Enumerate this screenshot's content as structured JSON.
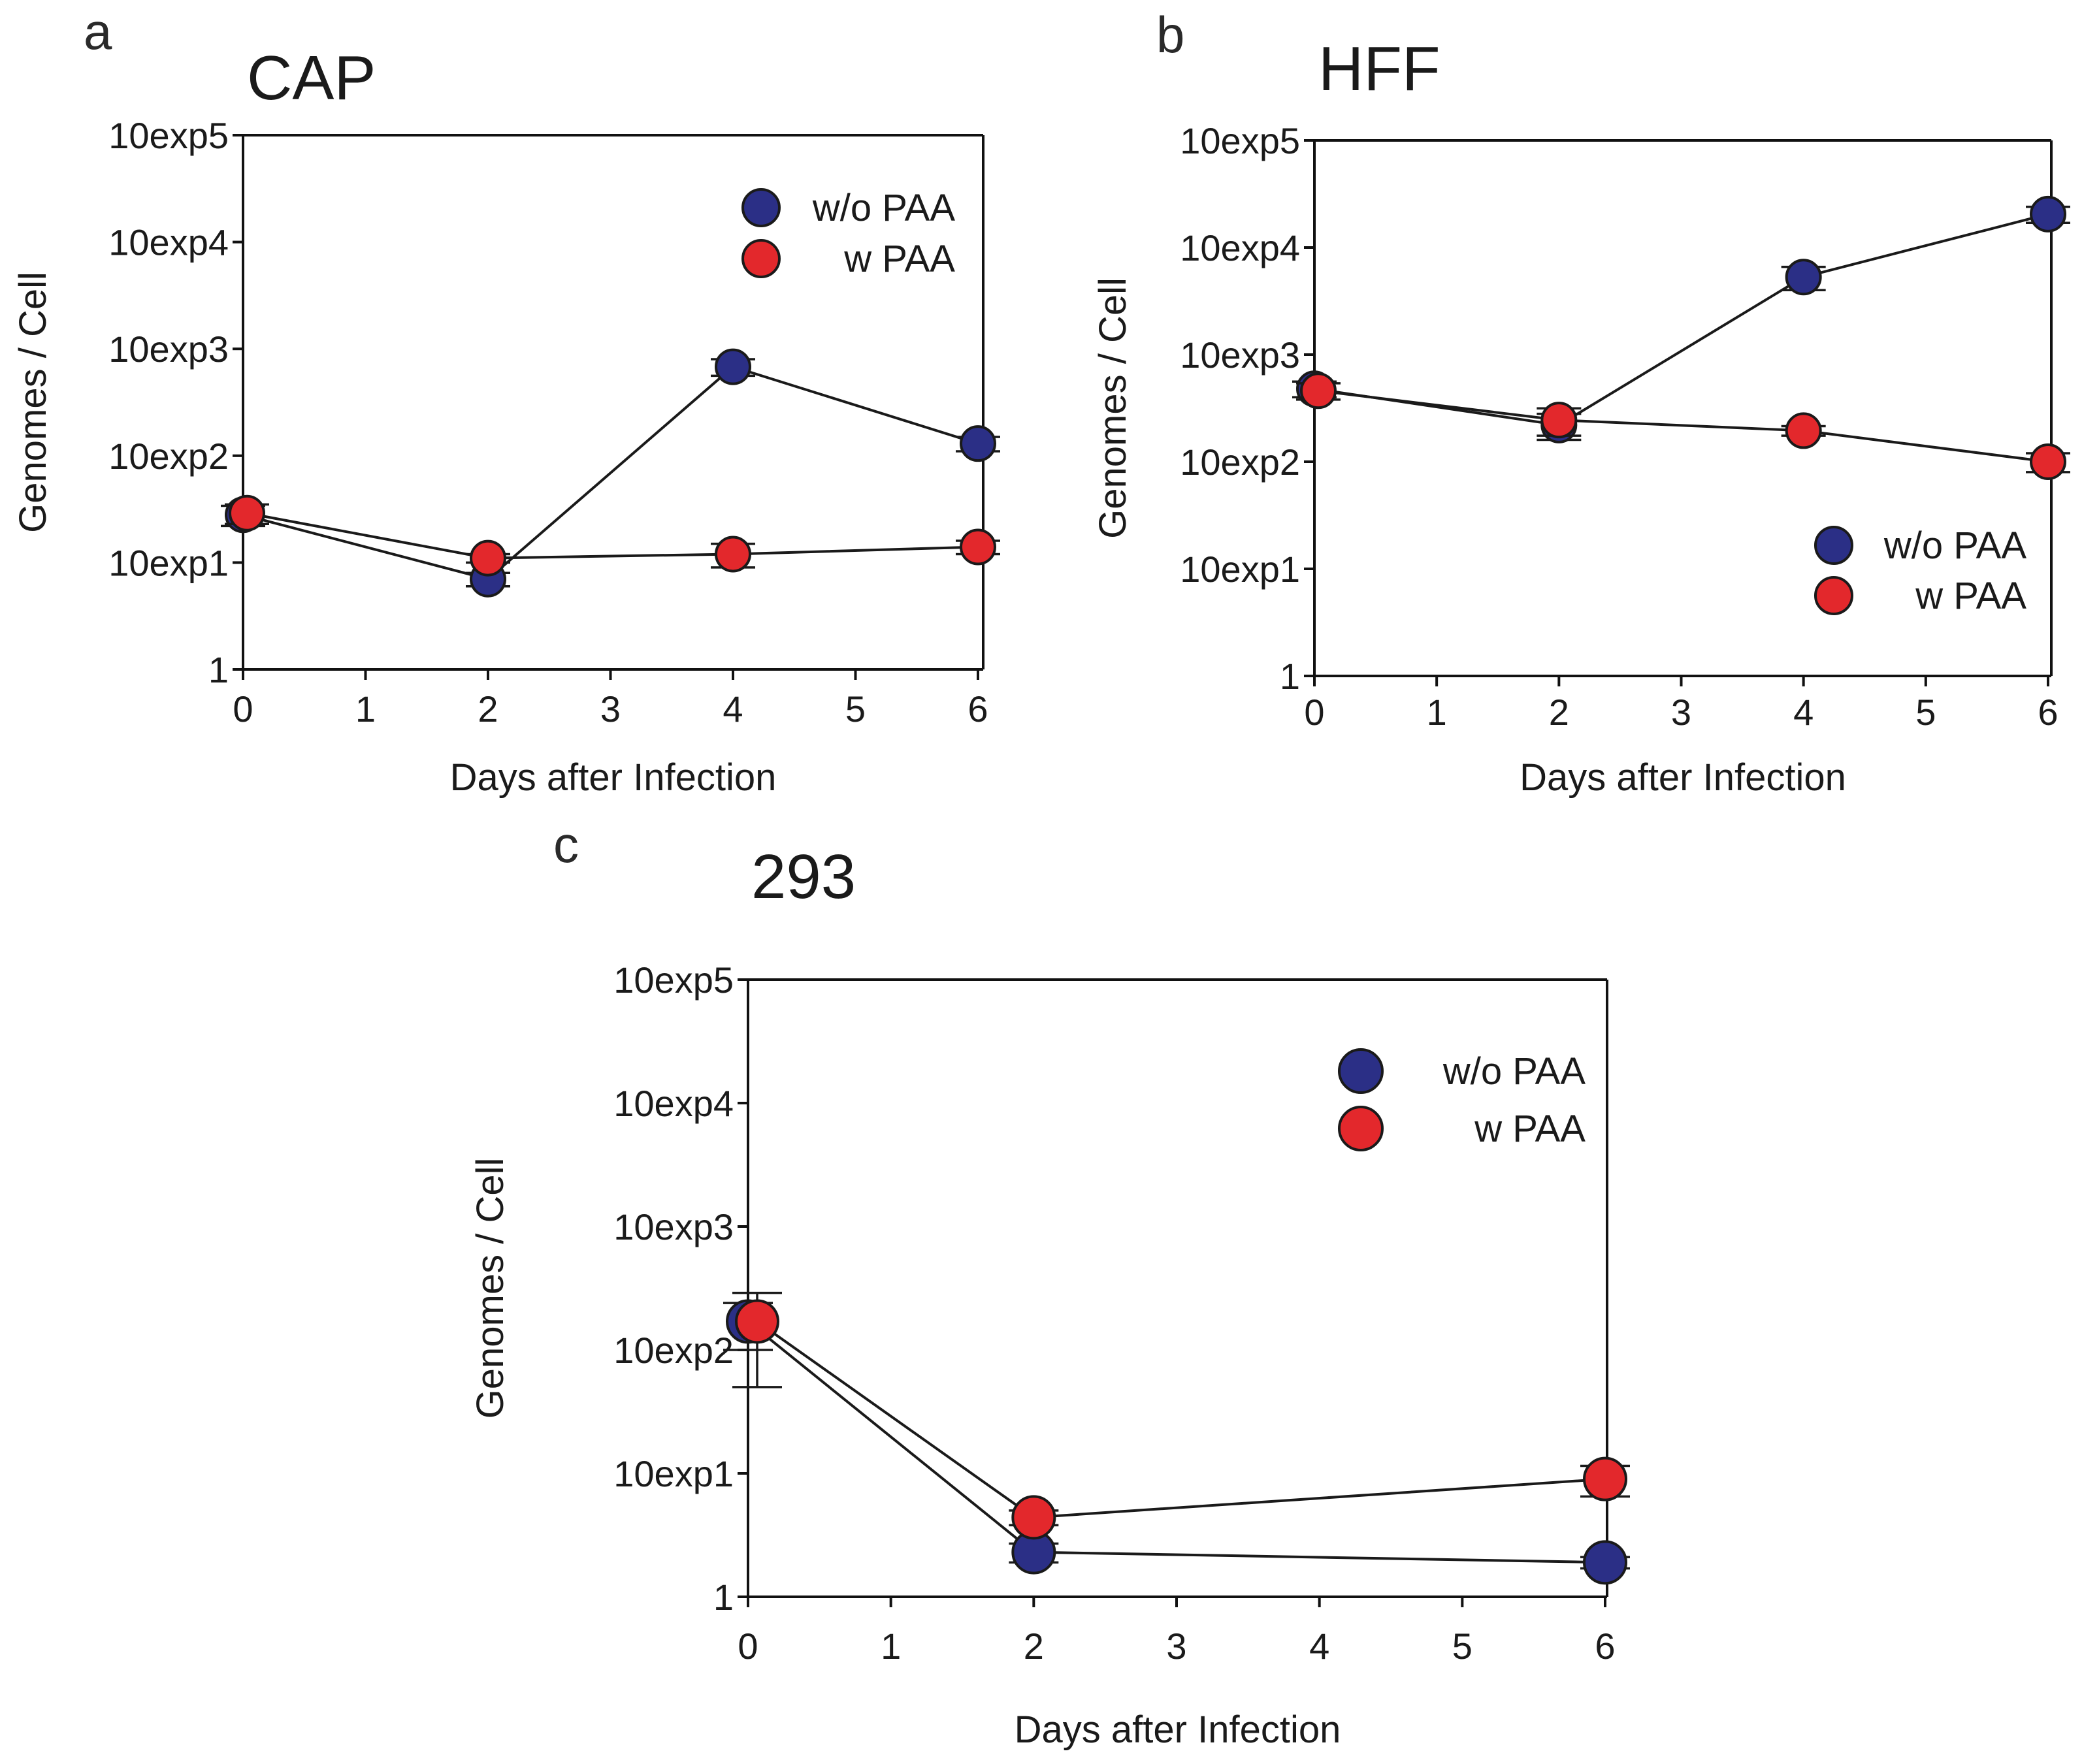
{
  "chart_data": [
    {
      "panel": "a",
      "type": "scatter",
      "title": "CAP",
      "xlabel": "Days after Infection",
      "ylabel": "Genomes / Cell",
      "yscale": "log",
      "ylim": [
        1,
        100000
      ],
      "xlim": [
        0,
        6
      ],
      "xticks": [
        "0",
        "1",
        "2",
        "3",
        "4",
        "5",
        "6"
      ],
      "yticks": [
        "1",
        "10exp1",
        "10exp2",
        "10exp3",
        "10exp4",
        "10exp5"
      ],
      "legend_position": "top-right",
      "series": [
        {
          "name": "w/o PAA",
          "color": "#2b2f86",
          "points": [
            {
              "x": 0,
              "y": 28,
              "err": 6
            },
            {
              "x": 2,
              "y": 7,
              "err": 1
            },
            {
              "x": 4,
              "y": 680,
              "err": 120
            },
            {
              "x": 6,
              "y": 130,
              "err": 20
            }
          ]
        },
        {
          "name": "w PAA",
          "color": "#e3282c",
          "points": [
            {
              "x": 0,
              "y": 29,
              "err": 6
            },
            {
              "x": 2,
              "y": 11,
              "err": 1
            },
            {
              "x": 4,
              "y": 12,
              "err": 3
            },
            {
              "x": 6,
              "y": 14,
              "err": 2
            }
          ]
        }
      ]
    },
    {
      "panel": "b",
      "type": "scatter",
      "title": "HFF",
      "xlabel": "Days after Infection",
      "ylabel": "Genomes / Cell",
      "yscale": "log",
      "ylim": [
        1,
        100000
      ],
      "xlim": [
        0,
        6
      ],
      "xticks": [
        "0",
        "1",
        "2",
        "3",
        "4",
        "5",
        "6"
      ],
      "yticks": [
        "1",
        "10exp1",
        "10exp2",
        "10exp3",
        "10exp4",
        "10exp5"
      ],
      "legend_position": "bottom-right",
      "series": [
        {
          "name": "w/o PAA",
          "color": "#2b2f86",
          "points": [
            {
              "x": 0,
              "y": 480,
              "err": 80
            },
            {
              "x": 2,
              "y": 220,
              "err": 60
            },
            {
              "x": 4,
              "y": 5300,
              "err": 1300
            },
            {
              "x": 6,
              "y": 20500,
              "err": 3500
            }
          ]
        },
        {
          "name": "w PAA",
          "color": "#e3282c",
          "points": [
            {
              "x": 0,
              "y": 460,
              "err": 80
            },
            {
              "x": 2,
              "y": 245,
              "err": 70
            },
            {
              "x": 4,
              "y": 195,
              "err": 20
            },
            {
              "x": 6,
              "y": 100,
              "err": 20
            }
          ]
        }
      ]
    },
    {
      "panel": "c",
      "type": "scatter",
      "title": "293",
      "xlabel": "Days after Infection",
      "ylabel": "Genomes / Cell",
      "yscale": "log",
      "ylim": [
        1,
        100000
      ],
      "xlim": [
        0,
        6
      ],
      "xticks": [
        "0",
        "1",
        "2",
        "3",
        "4",
        "5",
        "6"
      ],
      "yticks": [
        "1",
        "10exp1",
        "10exp2",
        "10exp3",
        "10exp4",
        "10exp5"
      ],
      "legend_position": "top-right",
      "series": [
        {
          "name": "w/o PAA",
          "color": "#2b2f86",
          "points": [
            {
              "x": 0,
              "y": 170,
              "err": 70
            },
            {
              "x": 2,
              "y": 2.3,
              "err": 0.4
            },
            {
              "x": 6,
              "y": 1.9,
              "err": 0.2
            }
          ]
        },
        {
          "name": "w PAA",
          "color": "#e3282c",
          "points": [
            {
              "x": 0,
              "y": 170,
              "err": 120
            },
            {
              "x": 2,
              "y": 4.4,
              "err": 0.6
            },
            {
              "x": 6,
              "y": 9,
              "err": 2.5
            }
          ]
        }
      ]
    }
  ]
}
